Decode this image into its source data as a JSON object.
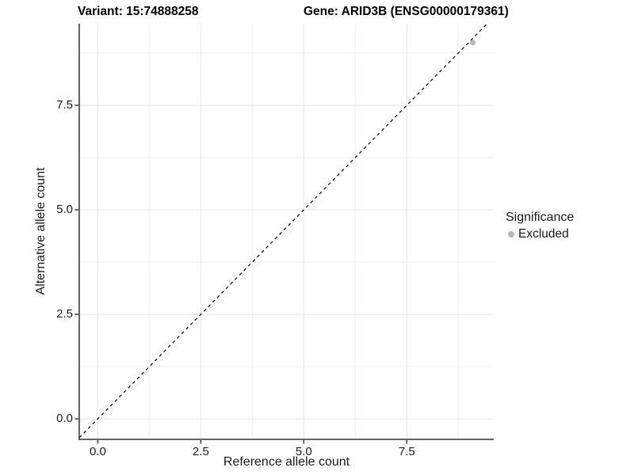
{
  "chart_data": {
    "type": "scatter",
    "titles": {
      "variant": "Variant: 15:74888258",
      "gene": "Gene: ARID3B (ENSG00000179361)"
    },
    "xlabel": "Reference allele count",
    "ylabel": "Alternative allele count",
    "xlim": [
      -0.45,
      9.61
    ],
    "ylim": [
      -0.49,
      9.45
    ],
    "x_ticks": [
      0.0,
      2.5,
      5.0,
      7.5
    ],
    "x_tick_labels": [
      "0.0",
      "2.5",
      "5.0",
      "7.5"
    ],
    "y_ticks": [
      0.0,
      2.5,
      5.0,
      7.5
    ],
    "y_tick_labels": [
      "0.0",
      "2.5",
      "5.0",
      "7.5"
    ],
    "x_minor_ticks": [
      1.25,
      3.75,
      6.25,
      8.75
    ],
    "y_minor_ticks": [
      1.25,
      3.75,
      6.25,
      8.75
    ],
    "grid": {
      "on": true,
      "major_color": "#e6e6e6",
      "minor_color": "#f2f2f2"
    },
    "identity_line": {
      "style": "dashed",
      "color": "#000000",
      "from": -0.45,
      "to": 9.45
    },
    "series": [
      {
        "name": "Excluded",
        "color": "#b9b9b9",
        "points": [
          [
            9.1,
            9.0
          ]
        ],
        "point_radius": 3.5
      }
    ],
    "legend": {
      "title": "Significance",
      "position": "right",
      "entries": [
        {
          "label": "Excluded",
          "color": "#b9b9b9"
        }
      ]
    }
  },
  "colors": {
    "axis_line": "#333333",
    "tick_mark": "#333333",
    "text": "#1a1a1a",
    "background": "#ffffff"
  }
}
